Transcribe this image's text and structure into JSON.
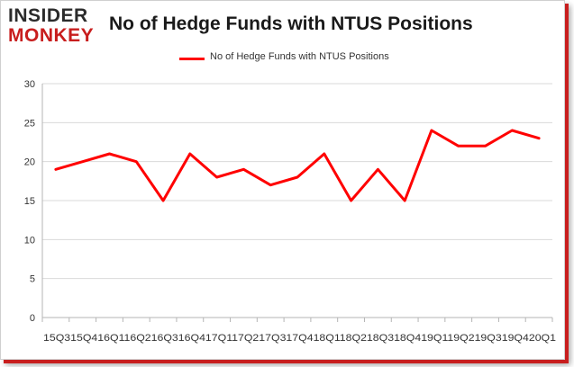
{
  "logo": {
    "line1": "INSIDER",
    "line2": "MONKEY"
  },
  "title": "No of Hedge Funds with NTUS Positions",
  "legend_label": "No of Hedge Funds with NTUS  Positions",
  "colors": {
    "series": "#ff0000",
    "brand_red": "#c81e1e",
    "grid": "#d9d9d9"
  },
  "chart_data": {
    "type": "line",
    "title": "No of Hedge Funds with NTUS Positions",
    "xlabel": "",
    "ylabel": "",
    "ylim": [
      0,
      30
    ],
    "yticks": [
      0,
      5,
      10,
      15,
      20,
      25,
      30
    ],
    "grid": true,
    "legend_position": "top-center",
    "categories": [
      "15Q3",
      "15Q4",
      "16Q1",
      "16Q2",
      "16Q3",
      "16Q4",
      "17Q1",
      "17Q2",
      "17Q3",
      "17Q4",
      "18Q1",
      "18Q2",
      "18Q3",
      "18Q4",
      "19Q1",
      "19Q2",
      "19Q3",
      "19Q4",
      "20Q1"
    ],
    "x_label_text": "15Q315Q416Q116Q216Q316Q417Q117Q217Q317Q418Q118Q218Q318Q419Q119Q219Q319Q420Q1",
    "series": [
      {
        "name": "No of Hedge Funds with NTUS  Positions",
        "values": [
          19,
          20,
          21,
          20,
          15,
          21,
          18,
          19,
          17,
          18,
          21,
          15,
          19,
          15,
          24,
          22,
          22,
          24,
          23
        ]
      }
    ]
  }
}
